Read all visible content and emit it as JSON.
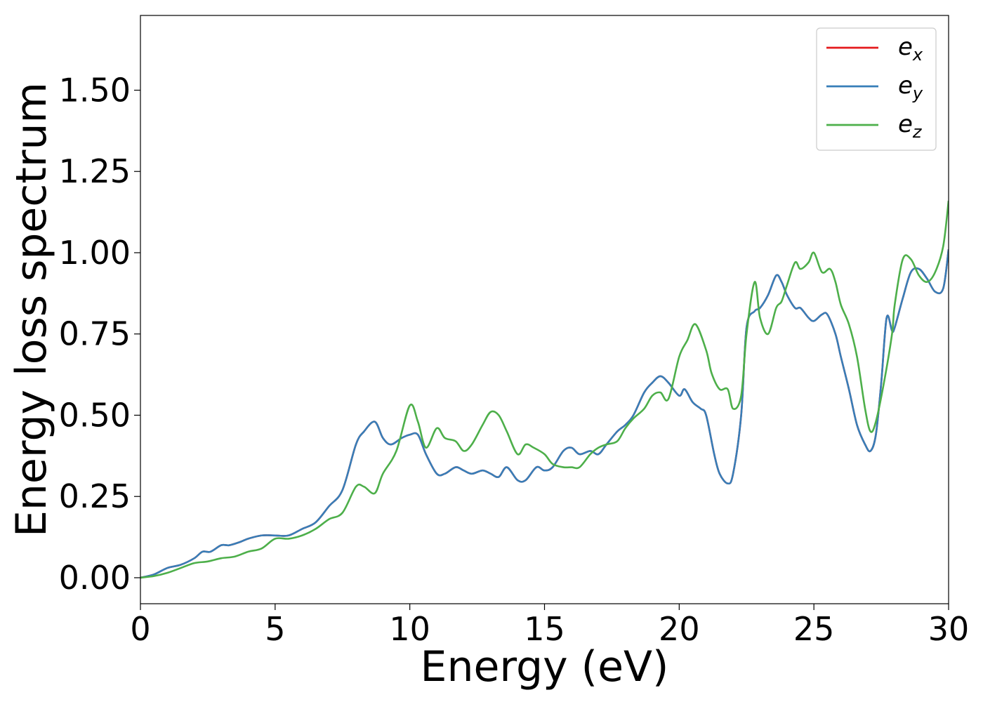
{
  "chart_data": {
    "type": "line",
    "xlabel": "Energy (eV)",
    "ylabel": "Energy loss spectrum",
    "xlim": [
      0,
      30
    ],
    "ylim": [
      -0.08,
      1.73
    ],
    "xticks": [
      0,
      5,
      10,
      15,
      20,
      25,
      30
    ],
    "xtick_labels": [
      "0",
      "5",
      "10",
      "15",
      "20",
      "25",
      "30"
    ],
    "yticks": [
      0.0,
      0.25,
      0.5,
      0.75,
      1.0,
      1.25,
      1.5
    ],
    "ytick_labels": [
      "0.00",
      "0.25",
      "0.50",
      "0.75",
      "1.00",
      "1.25",
      "1.50"
    ],
    "grid": false,
    "legend_position": "top-right",
    "series": [
      {
        "name": "e",
        "subscript": "x",
        "color": "#e41a1c",
        "x": [
          0,
          0.5,
          1.0,
          1.5,
          2.0,
          2.3,
          2.6,
          3.0,
          3.3,
          3.7,
          4.0,
          4.5,
          5.0,
          5.5,
          6.0,
          6.5,
          7.0,
          7.5,
          8.0,
          8.3,
          8.7,
          9.0,
          9.3,
          9.7,
          10.0,
          10.3,
          10.6,
          11.0,
          11.3,
          11.7,
          12.0,
          12.3,
          12.7,
          13.0,
          13.3,
          13.6,
          14.0,
          14.3,
          14.7,
          15.0,
          15.3,
          15.7,
          16.0,
          16.3,
          16.7,
          17.0,
          17.3,
          17.7,
          18.0,
          18.3,
          18.7,
          19.0,
          19.3,
          19.6,
          20.0,
          20.2,
          20.5,
          20.8,
          21.0,
          21.3,
          21.5,
          21.8,
          22.0,
          22.3,
          22.5,
          22.8,
          23.0,
          23.3,
          23.6,
          23.8,
          24.0,
          24.3,
          24.5,
          24.8,
          25.0,
          25.3,
          25.5,
          25.8,
          26.0,
          26.3,
          26.6,
          26.9,
          27.1,
          27.3,
          27.5,
          27.7,
          27.9,
          28.0,
          28.3,
          28.6,
          28.9,
          29.2,
          29.5,
          29.8,
          30.0
        ],
        "y": [
          0.0,
          0.01,
          0.03,
          0.04,
          0.06,
          0.08,
          0.08,
          0.1,
          0.1,
          0.11,
          0.12,
          0.13,
          0.13,
          0.13,
          0.15,
          0.17,
          0.22,
          0.27,
          0.41,
          0.45,
          0.48,
          0.43,
          0.41,
          0.43,
          0.44,
          0.44,
          0.38,
          0.32,
          0.32,
          0.34,
          0.33,
          0.32,
          0.33,
          0.32,
          0.31,
          0.34,
          0.3,
          0.3,
          0.34,
          0.33,
          0.34,
          0.39,
          0.4,
          0.38,
          0.39,
          0.38,
          0.41,
          0.45,
          0.47,
          0.5,
          0.57,
          0.6,
          0.62,
          0.6,
          0.56,
          0.58,
          0.54,
          0.52,
          0.5,
          0.38,
          0.32,
          0.29,
          0.32,
          0.5,
          0.77,
          0.82,
          0.83,
          0.87,
          0.93,
          0.91,
          0.87,
          0.83,
          0.83,
          0.8,
          0.79,
          0.81,
          0.81,
          0.75,
          0.68,
          0.58,
          0.47,
          0.41,
          0.39,
          0.44,
          0.6,
          0.8,
          0.76,
          0.77,
          0.86,
          0.94,
          0.95,
          0.92,
          0.88,
          0.89,
          1.01
        ]
      },
      {
        "name": "e",
        "subscript": "y",
        "color": "#377eb8",
        "x": [
          0,
          0.5,
          1.0,
          1.5,
          2.0,
          2.3,
          2.6,
          3.0,
          3.3,
          3.7,
          4.0,
          4.5,
          5.0,
          5.5,
          6.0,
          6.5,
          7.0,
          7.5,
          8.0,
          8.3,
          8.7,
          9.0,
          9.3,
          9.7,
          10.0,
          10.3,
          10.6,
          11.0,
          11.3,
          11.7,
          12.0,
          12.3,
          12.7,
          13.0,
          13.3,
          13.6,
          14.0,
          14.3,
          14.7,
          15.0,
          15.3,
          15.7,
          16.0,
          16.3,
          16.7,
          17.0,
          17.3,
          17.7,
          18.0,
          18.3,
          18.7,
          19.0,
          19.3,
          19.6,
          20.0,
          20.2,
          20.5,
          20.8,
          21.0,
          21.3,
          21.5,
          21.8,
          22.0,
          22.3,
          22.5,
          22.8,
          23.0,
          23.3,
          23.6,
          23.8,
          24.0,
          24.3,
          24.5,
          24.8,
          25.0,
          25.3,
          25.5,
          25.8,
          26.0,
          26.3,
          26.6,
          26.9,
          27.1,
          27.3,
          27.5,
          27.7,
          27.9,
          28.0,
          28.3,
          28.6,
          28.9,
          29.2,
          29.5,
          29.8,
          30.0
        ],
        "y": [
          0.0,
          0.01,
          0.03,
          0.04,
          0.06,
          0.08,
          0.08,
          0.1,
          0.1,
          0.11,
          0.12,
          0.13,
          0.13,
          0.13,
          0.15,
          0.17,
          0.22,
          0.27,
          0.41,
          0.45,
          0.48,
          0.43,
          0.41,
          0.43,
          0.44,
          0.44,
          0.38,
          0.32,
          0.32,
          0.34,
          0.33,
          0.32,
          0.33,
          0.32,
          0.31,
          0.34,
          0.3,
          0.3,
          0.34,
          0.33,
          0.34,
          0.39,
          0.4,
          0.38,
          0.39,
          0.38,
          0.41,
          0.45,
          0.47,
          0.5,
          0.57,
          0.6,
          0.62,
          0.6,
          0.56,
          0.58,
          0.54,
          0.52,
          0.5,
          0.38,
          0.32,
          0.29,
          0.32,
          0.5,
          0.77,
          0.82,
          0.83,
          0.87,
          0.93,
          0.91,
          0.87,
          0.83,
          0.83,
          0.8,
          0.79,
          0.81,
          0.81,
          0.75,
          0.68,
          0.58,
          0.47,
          0.41,
          0.39,
          0.44,
          0.6,
          0.8,
          0.76,
          0.77,
          0.86,
          0.94,
          0.95,
          0.92,
          0.88,
          0.89,
          1.01
        ]
      },
      {
        "name": "e",
        "subscript": "z",
        "color": "#4daf4a",
        "x": [
          0,
          0.5,
          1.0,
          1.5,
          2.0,
          2.5,
          3.0,
          3.5,
          4.0,
          4.5,
          5.0,
          5.5,
          6.0,
          6.5,
          7.0,
          7.5,
          8.0,
          8.3,
          8.7,
          9.0,
          9.5,
          10.0,
          10.3,
          10.6,
          11.0,
          11.3,
          11.7,
          12.0,
          12.3,
          12.7,
          13.0,
          13.3,
          13.6,
          14.0,
          14.3,
          14.6,
          15.0,
          15.3,
          15.7,
          16.0,
          16.3,
          16.7,
          17.0,
          17.3,
          17.7,
          18.0,
          18.3,
          18.7,
          19.0,
          19.3,
          19.6,
          20.0,
          20.3,
          20.6,
          21.0,
          21.2,
          21.5,
          21.8,
          22.0,
          22.3,
          22.5,
          22.8,
          23.0,
          23.3,
          23.6,
          23.8,
          24.0,
          24.3,
          24.5,
          24.8,
          25.0,
          25.3,
          25.6,
          25.8,
          26.0,
          26.3,
          26.6,
          26.9,
          27.1,
          27.3,
          27.6,
          27.9,
          28.0,
          28.3,
          28.6,
          28.9,
          29.2,
          29.5,
          29.8,
          30.0
        ],
        "y": [
          0.0,
          0.005,
          0.015,
          0.03,
          0.045,
          0.05,
          0.06,
          0.065,
          0.08,
          0.09,
          0.12,
          0.12,
          0.13,
          0.15,
          0.18,
          0.2,
          0.28,
          0.28,
          0.26,
          0.32,
          0.39,
          0.53,
          0.48,
          0.4,
          0.46,
          0.43,
          0.42,
          0.39,
          0.41,
          0.47,
          0.51,
          0.5,
          0.45,
          0.38,
          0.41,
          0.4,
          0.38,
          0.35,
          0.34,
          0.34,
          0.34,
          0.38,
          0.4,
          0.41,
          0.42,
          0.46,
          0.49,
          0.52,
          0.56,
          0.57,
          0.55,
          0.68,
          0.73,
          0.78,
          0.7,
          0.63,
          0.58,
          0.58,
          0.52,
          0.56,
          0.75,
          0.91,
          0.8,
          0.75,
          0.83,
          0.85,
          0.9,
          0.97,
          0.95,
          0.97,
          1.0,
          0.94,
          0.95,
          0.91,
          0.84,
          0.78,
          0.68,
          0.52,
          0.45,
          0.48,
          0.6,
          0.75,
          0.84,
          0.98,
          0.98,
          0.93,
          0.91,
          0.94,
          1.02,
          1.16
        ]
      }
    ]
  }
}
